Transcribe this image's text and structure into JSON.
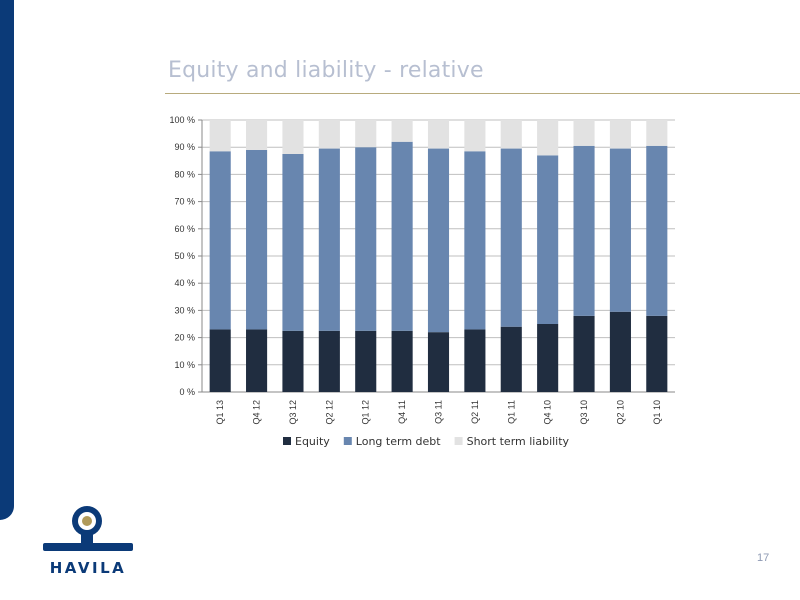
{
  "title": "Equity and liability - relative",
  "page_number": "17",
  "logo_text": "HAVILA",
  "colors": {
    "equity": "#202d40",
    "long_term_debt": "#6886af",
    "short_term_liability": "#e2e2e2",
    "brand_blue": "#0b3a78",
    "title_rule": "#b8ab7d"
  },
  "chart_data": {
    "type": "bar",
    "stacked": true,
    "percent": true,
    "categories": [
      "Q1 13",
      "Q4 12",
      "Q3 12",
      "Q2 12",
      "Q1 12",
      "Q4 11",
      "Q3 11",
      "Q2 11",
      "Q1 11",
      "Q4 10",
      "Q3 10",
      "Q2 10",
      "Q1 10"
    ],
    "series": [
      {
        "name": "Equity",
        "color": "#202d40",
        "values": [
          23,
          23,
          22.5,
          22.5,
          22.5,
          22.5,
          22,
          23,
          24,
          25,
          28,
          29.5,
          28
        ]
      },
      {
        "name": "Long term debt",
        "color": "#6886af",
        "values": [
          65.5,
          66,
          65,
          67,
          67.5,
          69.5,
          67.5,
          65.5,
          65.5,
          62,
          62.5,
          60,
          62.5
        ]
      },
      {
        "name": "Short term liability",
        "color": "#e2e2e2",
        "values": [
          11.5,
          11,
          12.5,
          10.5,
          10,
          8,
          10.5,
          11.5,
          10.5,
          13,
          9.5,
          10.5,
          9.5
        ]
      }
    ],
    "y_ticks": [
      "0 %",
      "10 %",
      "20 %",
      "30 %",
      "40 %",
      "50 %",
      "60 %",
      "70 %",
      "80 %",
      "90 %",
      "100 %"
    ],
    "ylim": [
      0,
      100
    ],
    "grid": true,
    "legend_position": "bottom",
    "title": "",
    "xlabel": "",
    "ylabel": ""
  }
}
